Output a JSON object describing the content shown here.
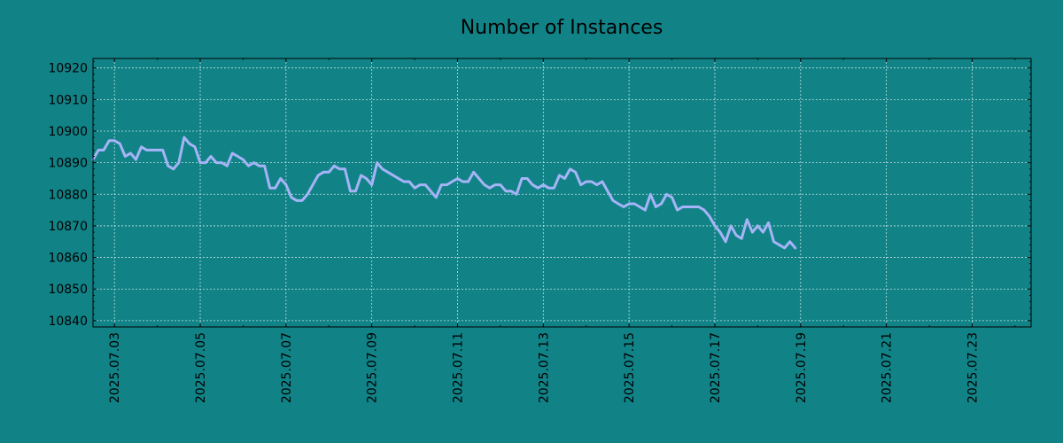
{
  "chart_data": {
    "type": "line",
    "title": "Number of Instances",
    "xlabel": "",
    "ylabel": "",
    "x_tick_labels": [
      "2025.07.03",
      "2025.07.05",
      "2025.07.07",
      "2025.07.09",
      "2025.07.11",
      "2025.07.13",
      "2025.07.15",
      "2025.07.17",
      "2025.07.19",
      "2025.07.21",
      "2025.07.23"
    ],
    "y_ticks": [
      10840,
      10850,
      10860,
      10870,
      10880,
      10890,
      10900,
      10910,
      10920
    ],
    "xlim": [
      "2025-07-02 12:00",
      "2025-07-24 09:00"
    ],
    "ylim": [
      10838,
      10923
    ],
    "grid": true,
    "legend": false,
    "colors": {
      "background": "#118387",
      "line": "#A6B4F7",
      "grid": "#C0E0E0",
      "axis": "#000000"
    },
    "series": [
      {
        "values": [
          [
            "2025-07-02 12:00",
            10891
          ],
          [
            "2025-07-02 15:00",
            10894
          ],
          [
            "2025-07-02 18:00",
            10894
          ],
          [
            "2025-07-02 21:00",
            10897
          ],
          [
            "2025-07-03 00:00",
            10897
          ],
          [
            "2025-07-03 03:00",
            10896
          ],
          [
            "2025-07-03 06:00",
            10892
          ],
          [
            "2025-07-03 09:00",
            10893
          ],
          [
            "2025-07-03 12:00",
            10891
          ],
          [
            "2025-07-03 15:00",
            10895
          ],
          [
            "2025-07-03 18:00",
            10894
          ],
          [
            "2025-07-03 21:00",
            10894
          ],
          [
            "2025-07-04 00:00",
            10894
          ],
          [
            "2025-07-04 03:00",
            10894
          ],
          [
            "2025-07-04 06:00",
            10889
          ],
          [
            "2025-07-04 09:00",
            10888
          ],
          [
            "2025-07-04 12:00",
            10890
          ],
          [
            "2025-07-04 15:00",
            10898
          ],
          [
            "2025-07-04 18:00",
            10896
          ],
          [
            "2025-07-04 21:00",
            10895
          ],
          [
            "2025-07-05 00:00",
            10890
          ],
          [
            "2025-07-05 03:00",
            10890
          ],
          [
            "2025-07-05 06:00",
            10892
          ],
          [
            "2025-07-05 09:00",
            10890
          ],
          [
            "2025-07-05 12:00",
            10890
          ],
          [
            "2025-07-05 15:00",
            10889
          ],
          [
            "2025-07-05 18:00",
            10893
          ],
          [
            "2025-07-05 21:00",
            10892
          ],
          [
            "2025-07-06 00:00",
            10891
          ],
          [
            "2025-07-06 03:00",
            10889
          ],
          [
            "2025-07-06 06:00",
            10890
          ],
          [
            "2025-07-06 09:00",
            10889
          ],
          [
            "2025-07-06 12:00",
            10889
          ],
          [
            "2025-07-06 15:00",
            10882
          ],
          [
            "2025-07-06 18:00",
            10882
          ],
          [
            "2025-07-06 21:00",
            10885
          ],
          [
            "2025-07-07 00:00",
            10883
          ],
          [
            "2025-07-07 03:00",
            10879
          ],
          [
            "2025-07-07 06:00",
            10878
          ],
          [
            "2025-07-07 09:00",
            10878
          ],
          [
            "2025-07-07 12:00",
            10880
          ],
          [
            "2025-07-07 15:00",
            10883
          ],
          [
            "2025-07-07 18:00",
            10886
          ],
          [
            "2025-07-07 21:00",
            10887
          ],
          [
            "2025-07-08 00:00",
            10887
          ],
          [
            "2025-07-08 03:00",
            10889
          ],
          [
            "2025-07-08 06:00",
            10888
          ],
          [
            "2025-07-08 09:00",
            10888
          ],
          [
            "2025-07-08 12:00",
            10881
          ],
          [
            "2025-07-08 15:00",
            10881
          ],
          [
            "2025-07-08 18:00",
            10886
          ],
          [
            "2025-07-08 21:00",
            10885
          ],
          [
            "2025-07-09 00:00",
            10883
          ],
          [
            "2025-07-09 03:00",
            10890
          ],
          [
            "2025-07-09 06:00",
            10888
          ],
          [
            "2025-07-09 09:00",
            10887
          ],
          [
            "2025-07-09 12:00",
            10886
          ],
          [
            "2025-07-09 15:00",
            10885
          ],
          [
            "2025-07-09 18:00",
            10884
          ],
          [
            "2025-07-09 21:00",
            10884
          ],
          [
            "2025-07-10 00:00",
            10882
          ],
          [
            "2025-07-10 03:00",
            10883
          ],
          [
            "2025-07-10 06:00",
            10883
          ],
          [
            "2025-07-10 09:00",
            10881
          ],
          [
            "2025-07-10 12:00",
            10879
          ],
          [
            "2025-07-10 15:00",
            10883
          ],
          [
            "2025-07-10 18:00",
            10883
          ],
          [
            "2025-07-10 21:00",
            10884
          ],
          [
            "2025-07-11 00:00",
            10885
          ],
          [
            "2025-07-11 03:00",
            10884
          ],
          [
            "2025-07-11 06:00",
            10884
          ],
          [
            "2025-07-11 09:00",
            10887
          ],
          [
            "2025-07-11 12:00",
            10885
          ],
          [
            "2025-07-11 15:00",
            10883
          ],
          [
            "2025-07-11 18:00",
            10882
          ],
          [
            "2025-07-11 21:00",
            10883
          ],
          [
            "2025-07-12 00:00",
            10883
          ],
          [
            "2025-07-12 03:00",
            10881
          ],
          [
            "2025-07-12 06:00",
            10881
          ],
          [
            "2025-07-12 09:00",
            10880
          ],
          [
            "2025-07-12 12:00",
            10885
          ],
          [
            "2025-07-12 15:00",
            10885
          ],
          [
            "2025-07-12 18:00",
            10883
          ],
          [
            "2025-07-12 21:00",
            10882
          ],
          [
            "2025-07-13 00:00",
            10883
          ],
          [
            "2025-07-13 03:00",
            10882
          ],
          [
            "2025-07-13 06:00",
            10882
          ],
          [
            "2025-07-13 09:00",
            10886
          ],
          [
            "2025-07-13 12:00",
            10885
          ],
          [
            "2025-07-13 15:00",
            10888
          ],
          [
            "2025-07-13 18:00",
            10887
          ],
          [
            "2025-07-13 21:00",
            10883
          ],
          [
            "2025-07-14 00:00",
            10884
          ],
          [
            "2025-07-14 03:00",
            10884
          ],
          [
            "2025-07-14 06:00",
            10883
          ],
          [
            "2025-07-14 09:00",
            10884
          ],
          [
            "2025-07-14 12:00",
            10881
          ],
          [
            "2025-07-14 15:00",
            10878
          ],
          [
            "2025-07-14 18:00",
            10877
          ],
          [
            "2025-07-14 21:00",
            10876
          ],
          [
            "2025-07-15 00:00",
            10877
          ],
          [
            "2025-07-15 03:00",
            10877
          ],
          [
            "2025-07-15 06:00",
            10876
          ],
          [
            "2025-07-15 09:00",
            10875
          ],
          [
            "2025-07-15 12:00",
            10880
          ],
          [
            "2025-07-15 15:00",
            10876
          ],
          [
            "2025-07-15 18:00",
            10877
          ],
          [
            "2025-07-15 21:00",
            10880
          ],
          [
            "2025-07-16 00:00",
            10879
          ],
          [
            "2025-07-16 03:00",
            10875
          ],
          [
            "2025-07-16 06:00",
            10876
          ],
          [
            "2025-07-16 09:00",
            10876
          ],
          [
            "2025-07-16 12:00",
            10876
          ],
          [
            "2025-07-16 15:00",
            10876
          ],
          [
            "2025-07-16 18:00",
            10875
          ],
          [
            "2025-07-16 21:00",
            10873
          ],
          [
            "2025-07-17 00:00",
            10870
          ],
          [
            "2025-07-17 03:00",
            10868
          ],
          [
            "2025-07-17 06:00",
            10865
          ],
          [
            "2025-07-17 09:00",
            10870
          ],
          [
            "2025-07-17 12:00",
            10867
          ],
          [
            "2025-07-17 15:00",
            10866
          ],
          [
            "2025-07-17 18:00",
            10872
          ],
          [
            "2025-07-17 21:00",
            10868
          ],
          [
            "2025-07-18 00:00",
            10870
          ],
          [
            "2025-07-18 03:00",
            10868
          ],
          [
            "2025-07-18 06:00",
            10871
          ],
          [
            "2025-07-18 09:00",
            10865
          ],
          [
            "2025-07-18 12:00",
            10864
          ],
          [
            "2025-07-18 15:00",
            10863
          ],
          [
            "2025-07-18 18:00",
            10865
          ],
          [
            "2025-07-18 21:00",
            10863
          ]
        ]
      }
    ]
  }
}
